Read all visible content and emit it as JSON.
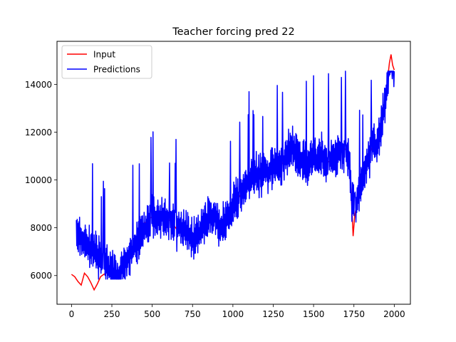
{
  "chart_data": {
    "type": "line",
    "title": "Teacher forcing pred 22",
    "xlabel": "",
    "ylabel": "",
    "xlim": [
      -90,
      2100
    ],
    "ylim": [
      4800,
      15800
    ],
    "xticks": [
      0,
      250,
      500,
      750,
      1000,
      1250,
      1500,
      1750,
      2000
    ],
    "yticks": [
      6000,
      8000,
      10000,
      12000,
      14000
    ],
    "grid": false,
    "legend": "top-left",
    "series": [
      {
        "name": "Input",
        "color": "#ff0000",
        "points": [
          [
            0,
            6050
          ],
          [
            20,
            5950
          ],
          [
            40,
            5750
          ],
          [
            60,
            5600
          ],
          [
            80,
            6100
          ],
          [
            100,
            5950
          ],
          [
            120,
            5700
          ],
          [
            140,
            5400
          ],
          [
            160,
            5650
          ],
          [
            180,
            5950
          ],
          [
            200,
            6050
          ],
          [
            230,
            6150
          ],
          [
            260,
            6050
          ],
          [
            290,
            5950
          ],
          [
            320,
            6150
          ],
          [
            350,
            6600
          ],
          [
            380,
            7100
          ],
          [
            410,
            7650
          ],
          [
            440,
            8050
          ],
          [
            470,
            8350
          ],
          [
            500,
            8450
          ],
          [
            530,
            8350
          ],
          [
            560,
            8500
          ],
          [
            590,
            8400
          ],
          [
            620,
            8250
          ],
          [
            650,
            7950
          ],
          [
            680,
            8050
          ],
          [
            710,
            7850
          ],
          [
            740,
            7650
          ],
          [
            770,
            7500
          ],
          [
            800,
            7800
          ],
          [
            830,
            8200
          ],
          [
            860,
            8600
          ],
          [
            890,
            8450
          ],
          [
            920,
            7900
          ],
          [
            950,
            8300
          ],
          [
            980,
            8650
          ],
          [
            1010,
            9100
          ],
          [
            1040,
            9300
          ],
          [
            1070,
            9650
          ],
          [
            1100,
            9950
          ],
          [
            1130,
            10200
          ],
          [
            1160,
            10150
          ],
          [
            1190,
            10400
          ],
          [
            1220,
            10250
          ],
          [
            1250,
            10650
          ],
          [
            1280,
            10500
          ],
          [
            1310,
            10700
          ],
          [
            1340,
            11200
          ],
          [
            1370,
            11400
          ],
          [
            1400,
            11050
          ],
          [
            1430,
            10800
          ],
          [
            1460,
            10650
          ],
          [
            1490,
            10900
          ],
          [
            1520,
            10750
          ],
          [
            1550,
            11050
          ],
          [
            1580,
            10700
          ],
          [
            1610,
            10850
          ],
          [
            1640,
            11000
          ],
          [
            1670,
            11150
          ],
          [
            1700,
            11300
          ],
          [
            1720,
            10800
          ],
          [
            1735,
            9200
          ],
          [
            1745,
            7650
          ],
          [
            1755,
            8500
          ],
          [
            1770,
            9100
          ],
          [
            1790,
            9700
          ],
          [
            1810,
            10200
          ],
          [
            1830,
            10700
          ],
          [
            1850,
            11150
          ],
          [
            1870,
            11500
          ],
          [
            1890,
            11400
          ],
          [
            1910,
            11800
          ],
          [
            1930,
            12700
          ],
          [
            1950,
            13500
          ],
          [
            1960,
            14300
          ],
          [
            1970,
            14900
          ],
          [
            1980,
            15250
          ],
          [
            1990,
            14800
          ],
          [
            2000,
            14600
          ]
        ]
      },
      {
        "name": "Predictions",
        "color": "#0000ff"
      }
    ]
  }
}
